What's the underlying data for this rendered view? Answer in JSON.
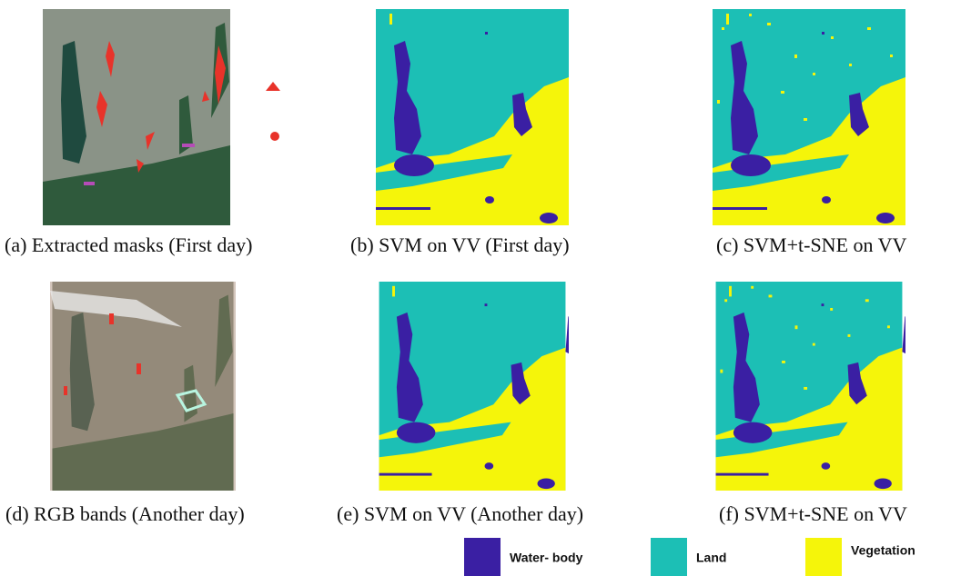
{
  "panels": [
    {
      "caption": "(a) Extracted masks (First day)"
    },
    {
      "caption": "(b) SVM on VV (First day)"
    },
    {
      "caption": "(c) SVM+t-SNE on VV"
    },
    {
      "caption": "(d) RGB bands (Another day)"
    },
    {
      "caption": "(e) SVM on VV (Another day)"
    },
    {
      "caption": "(f) SVM+t-SNE on VV"
    }
  ],
  "legend": [
    {
      "label": "Water- body",
      "color": "#3a1fa3"
    },
    {
      "label": "Land",
      "color": "#1cbfb5"
    },
    {
      "label": "Vegetation",
      "color": "#f5f50a"
    }
  ]
}
